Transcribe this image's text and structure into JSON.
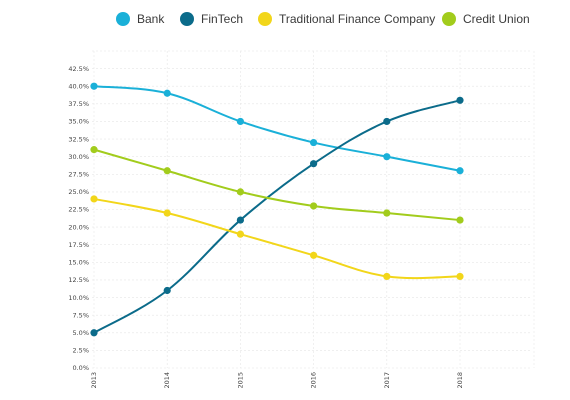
{
  "chart_data": {
    "type": "line",
    "title": "",
    "xlabel": "",
    "ylabel": "",
    "categories": [
      "2013",
      "2014",
      "2015",
      "2016",
      "2017",
      "2018"
    ],
    "ylim": [
      0,
      45
    ],
    "y_ticks": [
      "0.0%",
      "2.5%",
      "5.0%",
      "7.5%",
      "10.0%",
      "12.5%",
      "15.0%",
      "17.5%",
      "20.0%",
      "22.5%",
      "25.0%",
      "27.5%",
      "30.0%",
      "32.5%",
      "35.0%",
      "37.5%",
      "40.0%",
      "42.5%"
    ],
    "grid": true,
    "legend_position": "top",
    "series": [
      {
        "name": "Bank",
        "color": "#1ab0d8",
        "values": [
          40,
          39,
          35,
          32,
          30,
          28
        ]
      },
      {
        "name": "FinTech",
        "color": "#0b6b8a",
        "values": [
          5,
          11,
          21,
          29,
          35,
          38
        ]
      },
      {
        "name": "Traditional Finance Company",
        "color": "#f2d61a",
        "values": [
          24,
          22,
          19,
          16,
          13,
          13
        ]
      },
      {
        "name": "Credit Union",
        "color": "#a2cc1c",
        "values": [
          31,
          28,
          25,
          23,
          22,
          21
        ]
      }
    ]
  }
}
